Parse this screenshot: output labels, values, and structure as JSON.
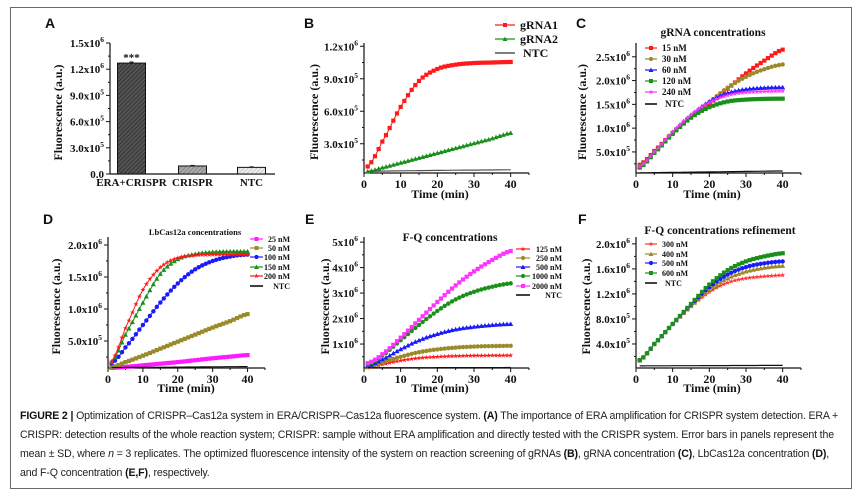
{
  "figure": {
    "caption": [
      {
        "t": "FIGURE 2 | ",
        "b": true
      },
      {
        "t": "Optimization of CRISPR–Cas12a system in ERA/CRISPR–Cas12a fluorescence system. "
      },
      {
        "t": "(A)",
        "b": true
      },
      {
        "t": " The importance of ERA amplification for CRISPR system detection. ERA + CRISPR: detection results of the whole reaction system; CRISPR: sample without ERA amplification and directly tested with the CRISPR system. Error bars in panels represent the mean ± SD, where "
      },
      {
        "t": "n",
        "i": true
      },
      {
        "t": " = 3 replicates. The optimized fluorescence intensity of the system on reaction screening of gRNAs "
      },
      {
        "t": "(B)",
        "b": true
      },
      {
        "t": ", gRNA concentration "
      },
      {
        "t": "(C)",
        "b": true
      },
      {
        "t": ", LbCas12a concentration "
      },
      {
        "t": "(D)",
        "b": true
      },
      {
        "t": ", and F-Q concentration "
      },
      {
        "t": "(E,F)",
        "b": true
      },
      {
        "t": ", respectively."
      }
    ]
  },
  "chart_data": [
    {
      "panel": "A",
      "type": "bar",
      "title": "",
      "ylabel": "Fluorescence (a.u.)",
      "xlabel": "",
      "categories": [
        "ERA+CRISPR",
        "CRISPR",
        "NTC"
      ],
      "values": [
        1270000,
        92000,
        76000
      ],
      "errors": [
        12000,
        6000,
        6000
      ],
      "annotation": "***",
      "ylim": [
        0,
        1500000
      ],
      "yticks": [
        0,
        300000,
        600000,
        900000,
        1200000,
        1500000
      ],
      "ytick_labels": [
        "0.0",
        "3.0x10^5",
        "6.0x10^5",
        "9.0x10^5",
        "1.2x10^6",
        "1.5x10^6"
      ],
      "fills": [
        "#333333",
        "#7a7a7a",
        "#bdbdbd"
      ],
      "pattern": "hatched"
    },
    {
      "panel": "B",
      "type": "line",
      "title": "",
      "xlabel": "Time (min)",
      "ylabel": "Fluorescence (a.u.)",
      "xlim": [
        0,
        45
      ],
      "ylim": [
        30000,
        1230000
      ],
      "xticks": [
        0,
        10,
        20,
        30,
        40
      ],
      "yticks": [
        300000,
        600000,
        900000,
        1200000
      ],
      "ytick_labels": [
        "3.0x10^5",
        "6.0x10^5",
        "9.0x10^5",
        "1.2x10^6"
      ],
      "legend": "top-right",
      "x": [
        1,
        5,
        10,
        15,
        20,
        25,
        30,
        35,
        40
      ],
      "series": [
        {
          "name": "gRNA1",
          "color": "#ff1a1a",
          "marker": "square",
          "values": [
            90000,
            320000,
            640000,
            880000,
            990000,
            1030000,
            1045000,
            1050000,
            1055000
          ]
        },
        {
          "name": "gRNA2",
          "color": "#1a8f1a",
          "marker": "triangle",
          "values": [
            45000,
            80000,
            125000,
            170000,
            215000,
            260000,
            305000,
            350000,
            400000
          ]
        },
        {
          "name": "NTC",
          "color": "#555555",
          "marker": "none",
          "values": [
            45000,
            48000,
            50000,
            52000,
            54000,
            56000,
            57000,
            58000,
            60000
          ]
        }
      ]
    },
    {
      "panel": "C",
      "type": "line",
      "title": "gRNA concentrations",
      "xlabel": "Time (min)",
      "ylabel": "Fluorescence (a.u.)",
      "xlim": [
        0,
        45
      ],
      "ylim": [
        57000,
        2790000
      ],
      "xticks": [
        0,
        10,
        20,
        30,
        40
      ],
      "yticks": [
        500000,
        1000000,
        1500000,
        2000000,
        2500000
      ],
      "ytick_labels": [
        "5.0x10^5",
        "1.0x10^6",
        "1.5x10^6",
        "2.0x10^6",
        "2.5x10^6"
      ],
      "legend": "top-left",
      "x": [
        1,
        5,
        10,
        15,
        20,
        25,
        30,
        35,
        40
      ],
      "series": [
        {
          "name": "15 nM",
          "color": "#ff1a1a",
          "marker": "square",
          "values": [
            230000,
            520000,
            900000,
            1230000,
            1520000,
            1830000,
            2150000,
            2420000,
            2650000
          ]
        },
        {
          "name": "30 nM",
          "color": "#9a8a2a",
          "marker": "circle",
          "values": [
            200000,
            500000,
            900000,
            1250000,
            1550000,
            1850000,
            2080000,
            2240000,
            2340000
          ]
        },
        {
          "name": "60 nM",
          "color": "#1a1aff",
          "marker": "triangle",
          "values": [
            190000,
            500000,
            920000,
            1280000,
            1560000,
            1740000,
            1820000,
            1850000,
            1860000
          ]
        },
        {
          "name": "120 nM",
          "color": "#1a8f1a",
          "marker": "square",
          "values": [
            170000,
            480000,
            880000,
            1220000,
            1440000,
            1560000,
            1600000,
            1615000,
            1620000
          ]
        },
        {
          "name": "240 nM",
          "color": "#ff33ff",
          "marker": "star",
          "values": [
            190000,
            500000,
            920000,
            1280000,
            1540000,
            1690000,
            1750000,
            1770000,
            1780000
          ]
        },
        {
          "name": "NTC",
          "color": "#111111",
          "marker": "none",
          "values": [
            60000,
            65000,
            70000,
            75000,
            80000,
            85000,
            90000,
            95000,
            100000
          ]
        }
      ]
    },
    {
      "panel": "D",
      "type": "line",
      "title": "LbCas12a concentrations",
      "xlabel": "Time (min)",
      "ylabel": "Fluorescence (a.u.)",
      "xlim": [
        0,
        45
      ],
      "ylim": [
        78000,
        2125000
      ],
      "xticks": [
        0,
        10,
        20,
        30,
        40
      ],
      "yticks": [
        500000,
        1000000,
        1500000,
        2000000
      ],
      "ytick_labels": [
        "5.0x10^5",
        "1.0x10^6",
        "1.5x10^6",
        "2.0x10^6"
      ],
      "legend": "outside-right",
      "x": [
        1,
        5,
        10,
        15,
        20,
        25,
        30,
        35,
        40
      ],
      "series": [
        {
          "name": "25 nM",
          "color": "#ff1aff",
          "marker": "square",
          "values": [
            80000,
            95000,
            120000,
            145000,
            170000,
            200000,
            230000,
            255000,
            280000
          ]
        },
        {
          "name": "50 nM",
          "color": "#9a8a2a",
          "marker": "square",
          "values": [
            90000,
            170000,
            270000,
            380000,
            490000,
            600000,
            710000,
            810000,
            920000
          ]
        },
        {
          "name": "100 nM",
          "color": "#1a1aff",
          "marker": "circle",
          "values": [
            150000,
            400000,
            750000,
            1100000,
            1400000,
            1620000,
            1750000,
            1820000,
            1850000
          ]
        },
        {
          "name": "150 nM",
          "color": "#1a8f1a",
          "marker": "triangle",
          "values": [
            170000,
            600000,
            1100000,
            1550000,
            1780000,
            1860000,
            1890000,
            1900000,
            1900000
          ]
        },
        {
          "name": "200 nM",
          "color": "#ff1a1a",
          "marker": "star",
          "values": [
            180000,
            700000,
            1300000,
            1650000,
            1800000,
            1840000,
            1850000,
            1850000,
            1850000
          ]
        },
        {
          "name": "NTC",
          "color": "#111111",
          "marker": "none",
          "values": [
            85000,
            87000,
            88000,
            90000,
            92000,
            94000,
            96000,
            98000,
            100000
          ]
        }
      ]
    },
    {
      "panel": "E",
      "type": "line",
      "title": "F-Q concentrations",
      "xlabel": "Time (min)",
      "ylabel": "Fluorescence (a.u.)",
      "xlim": [
        0,
        45
      ],
      "ylim": [
        60000,
        5200000
      ],
      "xticks": [
        0,
        10,
        20,
        30,
        40
      ],
      "yticks": [
        1000000,
        2000000,
        3000000,
        4000000,
        5000000
      ],
      "ytick_labels": [
        "1x10^6",
        "2x10^6",
        "3x10^6",
        "4x10^6",
        "5x10^6"
      ],
      "legend": "right",
      "x": [
        1,
        5,
        10,
        15,
        20,
        25,
        30,
        35,
        40
      ],
      "series": [
        {
          "name": "125 nM",
          "color": "#ff1a1a",
          "marker": "star",
          "values": [
            70000,
            200000,
            350000,
            450000,
            500000,
            530000,
            545000,
            550000,
            555000
          ]
        },
        {
          "name": "250 nM",
          "color": "#9a8a2a",
          "marker": "circle",
          "values": [
            100000,
            280000,
            500000,
            680000,
            790000,
            860000,
            900000,
            920000,
            930000
          ]
        },
        {
          "name": "500 nM",
          "color": "#1a1aff",
          "marker": "triangle",
          "values": [
            150000,
            400000,
            800000,
            1150000,
            1400000,
            1580000,
            1680000,
            1750000,
            1790000
          ]
        },
        {
          "name": "1000 nM",
          "color": "#1a8f1a",
          "marker": "circle",
          "values": [
            200000,
            550000,
            1150000,
            1750000,
            2300000,
            2750000,
            3050000,
            3250000,
            3380000
          ]
        },
        {
          "name": "2000 nM",
          "color": "#ff33ff",
          "marker": "square",
          "values": [
            250000,
            600000,
            1250000,
            1950000,
            2650000,
            3300000,
            3850000,
            4300000,
            4650000
          ]
        },
        {
          "name": "NTC",
          "color": "#111111",
          "marker": "none",
          "values": [
            70000,
            70000,
            72000,
            72000,
            74000,
            74000,
            76000,
            76000,
            78000
          ]
        }
      ]
    },
    {
      "panel": "F",
      "type": "line",
      "title": "F-Q concentrations refinement",
      "xlabel": "Time (min)",
      "ylabel": "Fluorescence (a.u.)",
      "xlim": [
        0,
        45
      ],
      "ylim": [
        16000,
        2110000
      ],
      "xticks": [
        0,
        10,
        20,
        30,
        40
      ],
      "yticks": [
        400000,
        800000,
        1200000,
        1600000,
        2000000
      ],
      "ytick_labels": [
        "4.0x10^5",
        "8.0x10^5",
        "1.2x10^6",
        "1.6x10^6",
        "2.0x10^6"
      ],
      "legend": "top-left",
      "x": [
        1,
        5,
        10,
        15,
        20,
        25,
        30,
        35,
        40
      ],
      "series": [
        {
          "name": "300 nM",
          "color": "#ff3333",
          "marker": "star",
          "values": [
            140000,
            400000,
            720000,
            1000000,
            1230000,
            1380000,
            1450000,
            1480000,
            1500000
          ]
        },
        {
          "name": "400 nM",
          "color": "#9a8a2a",
          "marker": "triangle",
          "values": [
            140000,
            400000,
            720000,
            1010000,
            1270000,
            1450000,
            1560000,
            1620000,
            1650000
          ]
        },
        {
          "name": "500 nM",
          "color": "#1a1aff",
          "marker": "circle",
          "values": [
            140000,
            400000,
            720000,
            1030000,
            1310000,
            1510000,
            1630000,
            1690000,
            1720000
          ]
        },
        {
          "name": "600 nM",
          "color": "#1a8f1a",
          "marker": "square",
          "values": [
            140000,
            400000,
            720000,
            1040000,
            1350000,
            1580000,
            1720000,
            1800000,
            1850000
          ]
        },
        {
          "name": "NTC",
          "color": "#111111",
          "marker": "none",
          "values": [
            50000,
            51000,
            52000,
            53000,
            54000,
            55000,
            56000,
            57000,
            58000
          ]
        }
      ]
    }
  ]
}
